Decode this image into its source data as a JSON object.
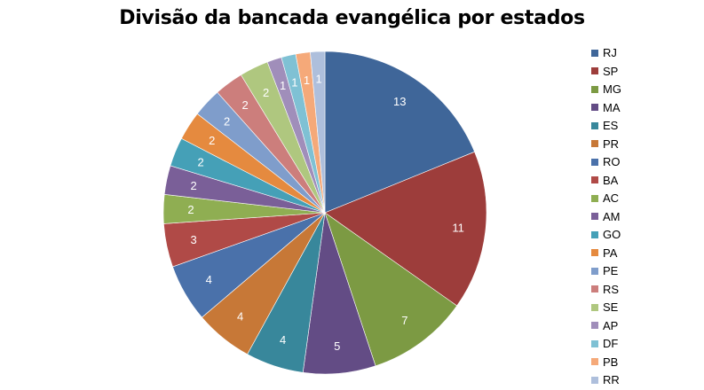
{
  "chart_data": {
    "type": "pie",
    "title": "Divisão da bancada evangélica por estados",
    "categories": [
      "RJ",
      "SP",
      "MG",
      "MA",
      "ES",
      "PR",
      "RO",
      "BA",
      "AC",
      "AM",
      "GO",
      "PA",
      "PE",
      "RS",
      "SE",
      "AP",
      "DF",
      "PB",
      "RR"
    ],
    "values": [
      13,
      11,
      7,
      5,
      4,
      4,
      4,
      3,
      2,
      2,
      2,
      2,
      2,
      2,
      2,
      1,
      1,
      1,
      1
    ],
    "colors": [
      "#3F6699",
      "#9D3D3B",
      "#7C9A43",
      "#634C85",
      "#38879B",
      "#C77837",
      "#4A71AA",
      "#B04A47",
      "#8FAE52",
      "#7A5F98",
      "#45A0B7",
      "#E58A3F",
      "#7F9DCB",
      "#CC7E7C",
      "#AFC77F",
      "#A08EBA",
      "#7FC1D4",
      "#F5A979",
      "#AEBFDC"
    ],
    "labels_shown": [
      "13",
      "11",
      "7",
      "5",
      "4",
      "4",
      "4",
      "3",
      "2",
      "2",
      "2",
      "2",
      "2",
      "2",
      "2",
      "1",
      "1",
      "1",
      "1"
    ],
    "legend_position": "right"
  }
}
